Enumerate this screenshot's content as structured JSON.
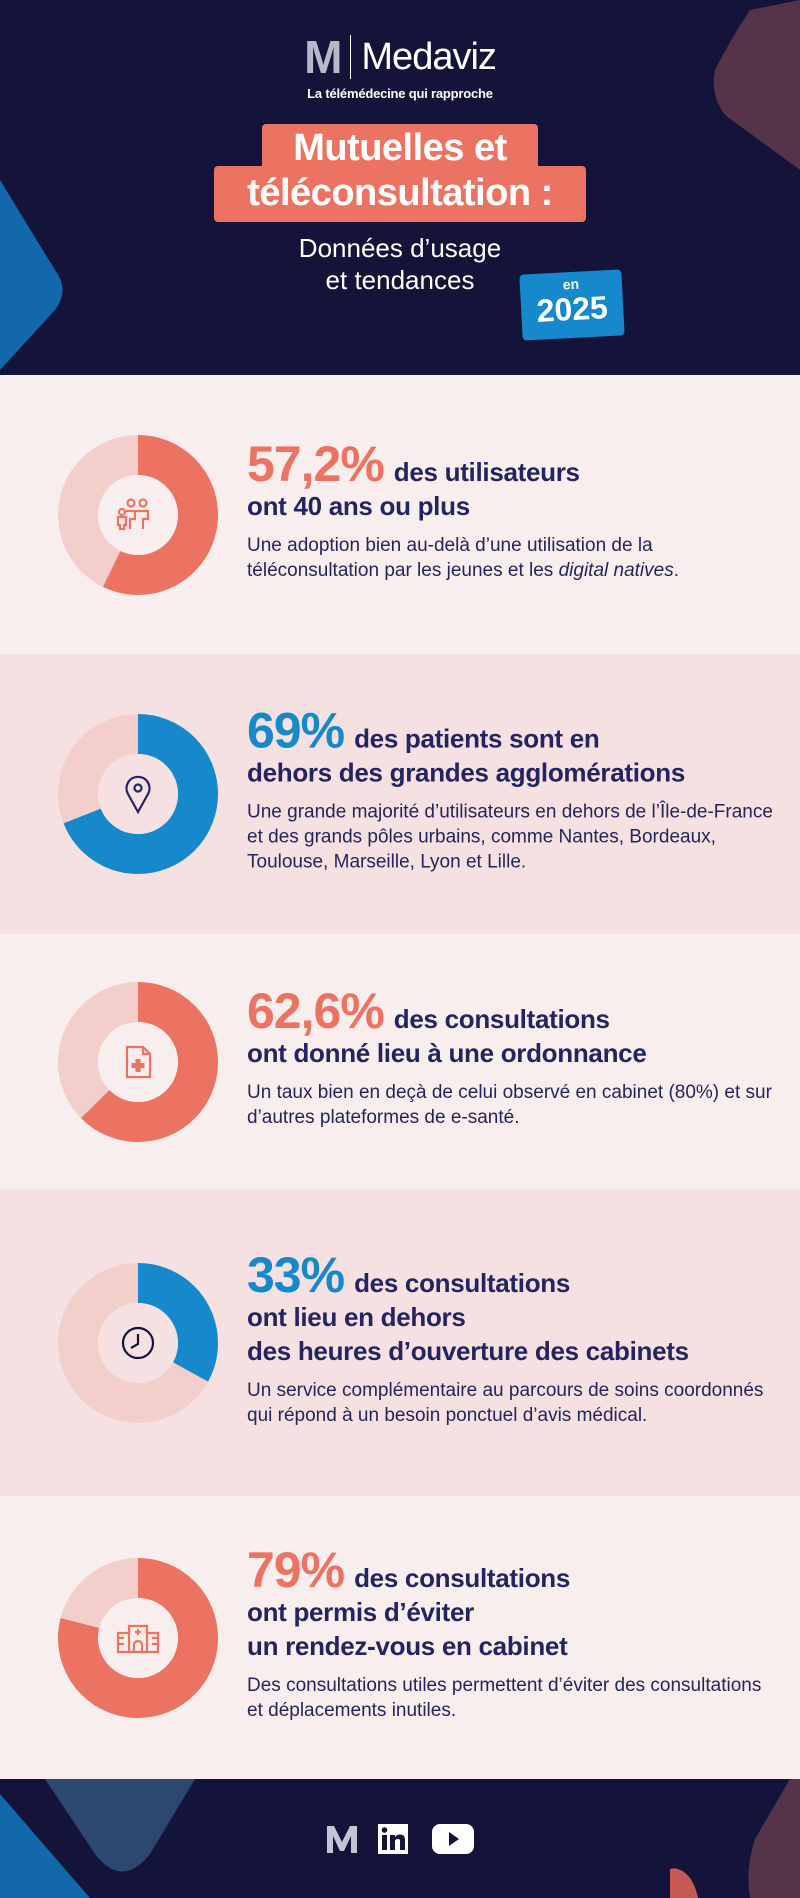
{
  "header": {
    "logo_mark": "M",
    "brand": "Medaviz",
    "tagline": "La télémédecine qui rapproche",
    "title_line1": "Mutuelles et",
    "title_line2": "téléconsultation :",
    "subtitle_line1": "Données d’usage",
    "subtitle_line2": "et tendances",
    "year_prefix": "en",
    "year": "2025"
  },
  "colors": {
    "navy": "#14133a",
    "coral": "#ec7262",
    "blue": "#1589cc",
    "ring": "#f3cfcb"
  },
  "stats": [
    {
      "value_label": "57,2%",
      "percent": 57.2,
      "color": "coral",
      "icon": "family-icon",
      "headline_1": "des utilisateurs",
      "headline_2": "ont 40 ans ou plus",
      "body": "Une adoption bien au-delà d’une utilisation de la téléconsultation par les jeunes et les ",
      "body_italic": "digital natives",
      "body_end": "."
    },
    {
      "value_label": "69%",
      "percent": 69,
      "color": "blue",
      "icon": "location-pin-icon",
      "headline_1": "des patients sont en",
      "headline_2": "dehors des grandes agglomérations",
      "body": "Une grande majorité d’utilisateurs en dehors de l’Île-de-France et des grands pôles urbains, comme Nantes, Bordeaux, Toulouse, Marseille, Lyon et Lille."
    },
    {
      "value_label": "62,6%",
      "percent": 62.6,
      "color": "coral",
      "icon": "prescription-document-icon",
      "headline_1": "des consultations",
      "headline_2": "ont donné lieu à une ordonnance",
      "body": "Un taux bien en deçà de celui observé en cabinet (80%) et sur d’autres plateformes de e-santé."
    },
    {
      "value_label": "33%",
      "percent": 33,
      "color": "blue",
      "icon": "clock-icon",
      "headline_1": "des consultations",
      "headline_2": "ont lieu en dehors",
      "headline_3": "des heures d’ouverture des cabinets",
      "body": "Un service complémentaire au parcours de soins coordonnés qui répond à un besoin ponctuel d’avis médical."
    },
    {
      "value_label": "79%",
      "percent": 79,
      "color": "coral",
      "icon": "hospital-icon",
      "headline_1": "des consultations",
      "headline_2": "ont permis d’éviter",
      "headline_3": "un rendez-vous en cabinet",
      "body": "Des consultations utiles permettent d’éviter des consultations et déplacements inutiles."
    }
  ],
  "footer": {
    "links": [
      "medaviz-logo-icon",
      "linkedin-icon",
      "youtube-icon"
    ],
    "linkedin_label": "in"
  }
}
